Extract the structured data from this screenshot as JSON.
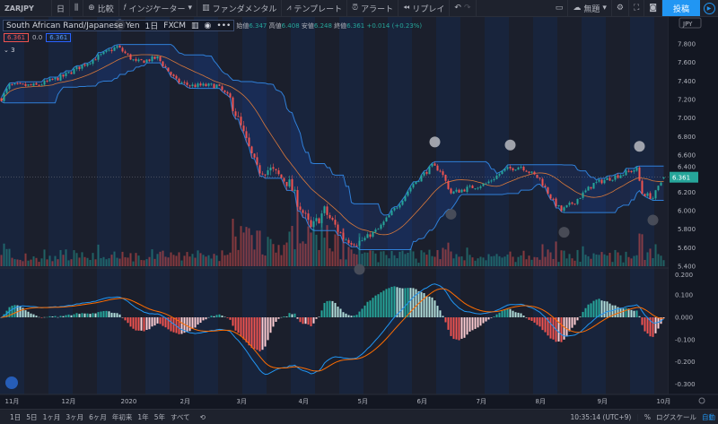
{
  "toolbar": {
    "symbol": "ZARJPY",
    "interval": "日",
    "compare": "比較",
    "indicators": "インジケーター",
    "fundamentals": "ファンダメンタル",
    "templates": "テンプレート",
    "alert": "アラート",
    "replay": "リプレイ",
    "layout_name": "無題",
    "post": "投稿"
  },
  "legend": {
    "title": "South African Rand/Japanese Yen",
    "interval": "1日",
    "source": "FXCM",
    "ohlc_labels": [
      "始値",
      "高値",
      "安値",
      "終値"
    ],
    "ohlc_values": [
      "6.347",
      "6.408",
      "6.248",
      "6.361"
    ],
    "change": "+0.014 (+0.23%)",
    "ind_value1": "6.361",
    "ind_value2": "0.0",
    "ind_value3": "6.361",
    "collapsed_count": "3"
  },
  "bottom": {
    "ranges": [
      "1日",
      "5日",
      "1ヶ月",
      "3ヶ月",
      "6ヶ月",
      "年初来",
      "1年",
      "5年",
      "すべて"
    ],
    "time": "10:35:14 (UTC+9)",
    "percent": "%",
    "log": "ログスケール",
    "auto": "自動"
  },
  "colors": {
    "up": "#26a69a",
    "down": "#ef5350",
    "band": "#2f7fd8",
    "mid": "#d9783a",
    "macd": "#2196f3",
    "signal": "#ff6d00",
    "accent": "#2196f3"
  },
  "chart_data": {
    "type": "candlestick",
    "symbol": "ZARJPY",
    "currency": "JPY",
    "last_price": "6.361",
    "price_ticks": [
      "7.800",
      "7.600",
      "7.400",
      "7.200",
      "7.000",
      "6.800",
      "6.600",
      "6.400",
      "6.200",
      "6.000",
      "5.800",
      "5.600",
      "5.400"
    ],
    "price_range": [
      5.4,
      7.8
    ],
    "macd_ticks": [
      "0.200",
      "0.100",
      "0.000",
      "-0.100",
      "-0.200",
      "-0.300"
    ],
    "macd_range": [
      -0.3,
      0.2
    ],
    "x_ticks": [
      "11月",
      "12月",
      "2020",
      "2月",
      "3月",
      "4月",
      "5月",
      "6月",
      "7月",
      "8月",
      "9月",
      "10月"
    ],
    "x_tick_days": [
      3,
      24,
      46,
      68,
      89,
      112,
      134,
      156,
      178,
      200,
      223,
      245
    ],
    "keypoints": [
      [
        0,
        7.21
      ],
      [
        3,
        7.35
      ],
      [
        13,
        7.35
      ],
      [
        23,
        7.45
      ],
      [
        32,
        7.6
      ],
      [
        43,
        7.77
      ],
      [
        50,
        7.6
      ],
      [
        58,
        7.65
      ],
      [
        65,
        7.4
      ],
      [
        70,
        7.35
      ],
      [
        80,
        7.35
      ],
      [
        85,
        7.21
      ],
      [
        90,
        6.82
      ],
      [
        95,
        6.44
      ],
      [
        100,
        6.44
      ],
      [
        107,
        6.29
      ],
      [
        110,
        6.1
      ],
      [
        115,
        5.8
      ],
      [
        120,
        6.0
      ],
      [
        127,
        5.71
      ],
      [
        133,
        5.66
      ],
      [
        140,
        5.8
      ],
      [
        147,
        6.05
      ],
      [
        153,
        6.29
      ],
      [
        160,
        6.48
      ],
      [
        163,
        6.44
      ],
      [
        167,
        6.19
      ],
      [
        173,
        6.24
      ],
      [
        180,
        6.29
      ],
      [
        187,
        6.44
      ],
      [
        193,
        6.48
      ],
      [
        200,
        6.34
      ],
      [
        205,
        6.1
      ],
      [
        208,
        6.0
      ],
      [
        213,
        6.1
      ],
      [
        220,
        6.29
      ],
      [
        230,
        6.39
      ],
      [
        236,
        6.45
      ],
      [
        238,
        6.19
      ],
      [
        242,
        6.14
      ],
      [
        246,
        6.36
      ]
    ]
  }
}
